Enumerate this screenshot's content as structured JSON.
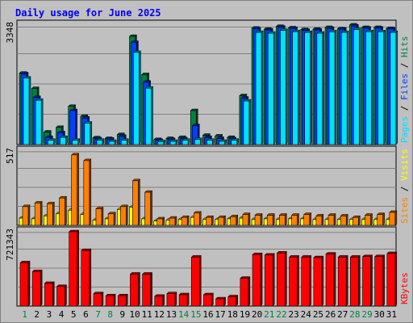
{
  "title": "Daily usage for June 2025",
  "colors": {
    "background": "#c0c0c0",
    "title": "#0000ff",
    "hits": "#008040",
    "files": "#0040ff",
    "pages": "#00e0ff",
    "visits": "#ffff00",
    "sites": "#ff8000",
    "kbytes": "#ff0000",
    "weekend": "#008040",
    "weekday": "#000000"
  },
  "chart_data": [
    {
      "type": "bar",
      "panel": "top",
      "ymax_label": "3348",
      "ylim": [
        0,
        3348
      ],
      "legend": [
        "Pages",
        "Files",
        "Hits"
      ],
      "legend_separator": " / ",
      "grid": true,
      "categories": [
        "1",
        "2",
        "3",
        "4",
        "5",
        "6",
        "7",
        "8",
        "9",
        "10",
        "11",
        "12",
        "13",
        "14",
        "15",
        "16",
        "17",
        "18",
        "19",
        "20",
        "21",
        "22",
        "23",
        "24",
        "25",
        "26",
        "27",
        "28",
        "29",
        "30",
        "31"
      ],
      "series": [
        {
          "name": "Hits",
          "values": [
            2000,
            1570,
            350,
            480,
            1070,
            790,
            190,
            170,
            280,
            3030,
            1960,
            140,
            170,
            200,
            950,
            260,
            240,
            200,
            1370,
            3260,
            3230,
            3310,
            3270,
            3220,
            3230,
            3280,
            3240,
            3350,
            3280,
            3280,
            3250
          ]
        },
        {
          "name": "Files",
          "values": [
            1980,
            1320,
            200,
            330,
            950,
            740,
            160,
            150,
            230,
            2860,
            1750,
            120,
            140,
            160,
            530,
            200,
            170,
            160,
            1300,
            3240,
            3210,
            3290,
            3250,
            3200,
            3210,
            3250,
            3230,
            3320,
            3260,
            3260,
            3240
          ]
        },
        {
          "name": "Pages",
          "values": [
            1860,
            1240,
            120,
            200,
            120,
            600,
            120,
            90,
            120,
            2580,
            1580,
            80,
            90,
            120,
            140,
            120,
            90,
            120,
            1220,
            3140,
            3120,
            3200,
            3160,
            3140,
            3120,
            3160,
            3140,
            3220,
            3160,
            3160,
            3140
          ]
        }
      ]
    },
    {
      "type": "bar",
      "panel": "middle",
      "ymax_label": "517",
      "ylim": [
        0,
        517
      ],
      "legend": [
        "Sites",
        "Visits"
      ],
      "legend_separator": " / ",
      "grid": true,
      "categories": [
        "1",
        "2",
        "3",
        "4",
        "5",
        "6",
        "7",
        "8",
        "9",
        "10",
        "11",
        "12",
        "13",
        "14",
        "15",
        "16",
        "17",
        "18",
        "19",
        "20",
        "21",
        "22",
        "23",
        "24",
        "25",
        "26",
        "27",
        "28",
        "29",
        "30",
        "31"
      ],
      "series": [
        {
          "name": "Visits",
          "values": [
            50,
            45,
            65,
            80,
            105,
            75,
            35,
            45,
            110,
            125,
            45,
            30,
            35,
            40,
            55,
            40,
            40,
            45,
            50,
            40,
            45,
            40,
            45,
            45,
            40,
            40,
            40,
            40,
            40,
            40,
            40
          ]
        },
        {
          "name": "Sites",
          "values": [
            130,
            155,
            150,
            190,
            490,
            450,
            115,
            80,
            130,
            310,
            230,
            45,
            50,
            55,
            85,
            55,
            55,
            60,
            75,
            70,
            70,
            70,
            70,
            75,
            65,
            70,
            65,
            55,
            70,
            75,
            90
          ]
        }
      ]
    },
    {
      "type": "bar",
      "panel": "bottom",
      "ymax_label": "721343",
      "ylim": [
        0,
        721343
      ],
      "legend": [
        "KBytes"
      ],
      "grid": true,
      "categories": [
        "1",
        "2",
        "3",
        "4",
        "5",
        "6",
        "7",
        "8",
        "9",
        "10",
        "11",
        "12",
        "13",
        "14",
        "15",
        "16",
        "17",
        "18",
        "19",
        "20",
        "21",
        "22",
        "23",
        "24",
        "25",
        "26",
        "27",
        "28",
        "29",
        "30",
        "31"
      ],
      "series": [
        {
          "name": "KBytes",
          "values": [
            420000,
            335000,
            220000,
            190000,
            721343,
            540000,
            120000,
            100000,
            100000,
            310000,
            310000,
            95000,
            120000,
            110000,
            475000,
            110000,
            70000,
            90000,
            270000,
            500000,
            495000,
            515000,
            475000,
            475000,
            470000,
            505000,
            475000,
            475000,
            480000,
            480000,
            510000
          ]
        }
      ]
    }
  ],
  "weekend_days": [
    "1",
    "7",
    "8",
    "14",
    "15",
    "21",
    "22",
    "28",
    "29"
  ]
}
